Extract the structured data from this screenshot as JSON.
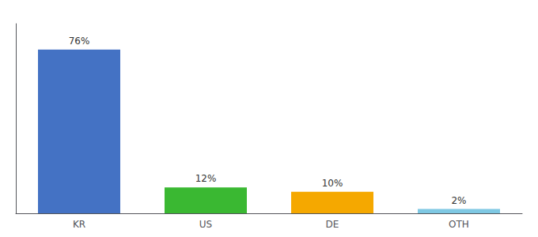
{
  "chart_data": {
    "type": "bar",
    "categories": [
      "KR",
      "US",
      "DE",
      "OTH"
    ],
    "values": [
      76,
      12,
      10,
      2
    ],
    "value_labels": [
      "76%",
      "12%",
      "10%",
      "2%"
    ],
    "colors": [
      "#4472c4",
      "#3ab832",
      "#f5a800",
      "#7ec8e3"
    ],
    "ylim": [
      0,
      88
    ],
    "grid": false,
    "data_labels": true,
    "tick_labels": "x"
  }
}
